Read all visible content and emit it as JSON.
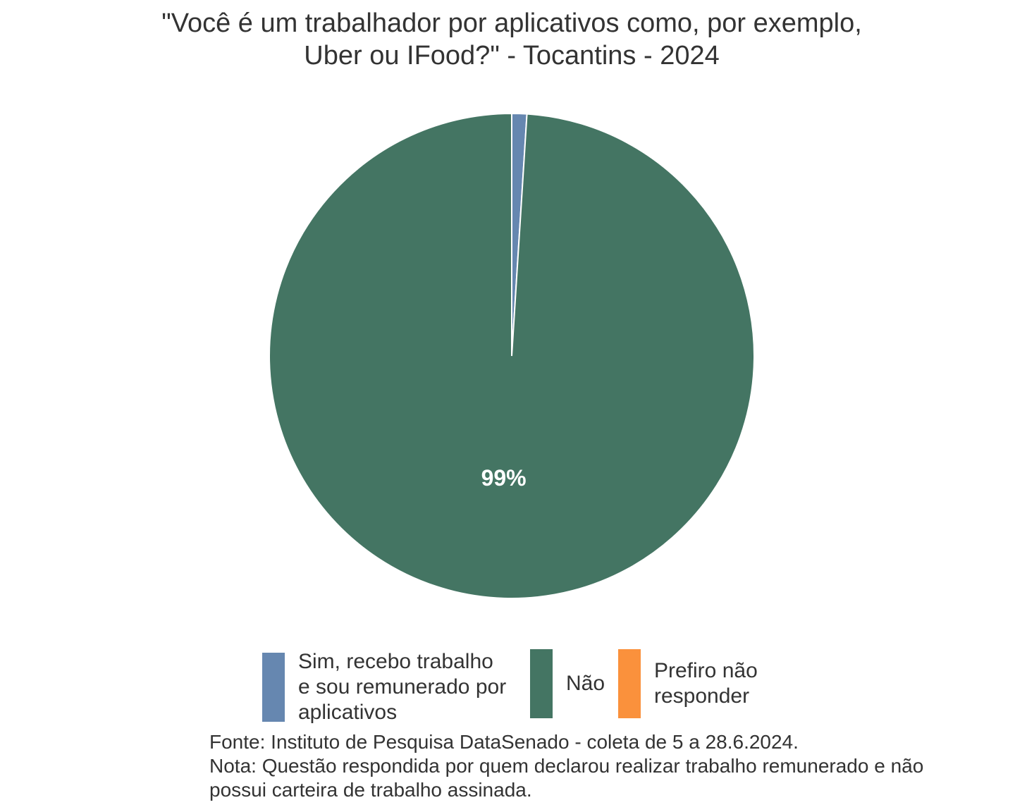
{
  "chart_data": {
    "type": "pie",
    "title": "\"Você é um trabalhador por aplicativos como, por exemplo,\nUber ou IFood?\" - Tocantins - 2024",
    "title_lines": [
      "\"Você é um trabalhador por aplicativos como, por exemplo,",
      "Uber ou IFood?\" - Tocantins - 2024"
    ],
    "slices": [
      {
        "label": "Sim, recebo trabalho e sou remunerado por aplicativos",
        "label_lines": [
          "Sim, recebo trabalho",
          "e sou remunerado por",
          "aplicativos"
        ],
        "value": 1,
        "color": "#6687b0",
        "data_label": ""
      },
      {
        "label": "Não",
        "label_lines": [
          "Não"
        ],
        "value": 99,
        "color": "#447563",
        "data_label": "99%"
      },
      {
        "label": "Prefiro não responder",
        "label_lines": [
          "Prefiro não",
          "responder"
        ],
        "value": 0,
        "color": "#fa913c",
        "data_label": ""
      }
    ],
    "legend_position": "bottom",
    "caption_lines": [
      "Fonte: Instituto de Pesquisa DataSenado - coleta de 5 a 28.6.2024.",
      "Nota: Questão respondida por quem declarou realizar trabalho remunerado e não",
      "possui carteira de trabalho assinada."
    ]
  }
}
